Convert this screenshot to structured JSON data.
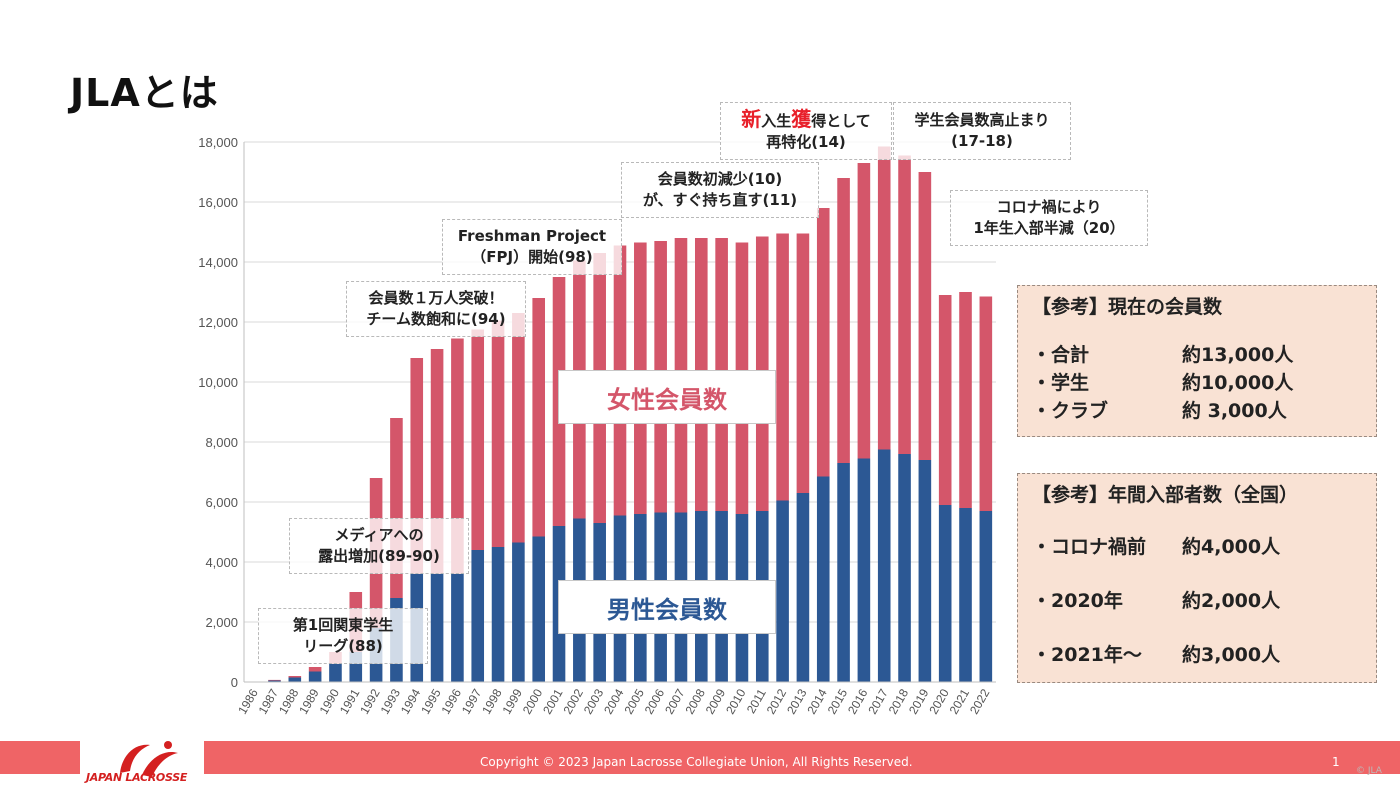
{
  "slide": {
    "title": "JLAとは",
    "copyright": "Copyright © 2023  Japan Lacrosse Collegiate Union, All Rights Reserved.",
    "page_number": "1",
    "logo_text": "JAPAN LACROSSE",
    "watermark": "© JLA"
  },
  "colors": {
    "female": "#d4566a",
    "male": "#2c5894",
    "footer": "#ef6466",
    "info_bg": "#f9e2d4"
  },
  "chart_data": {
    "type": "bar",
    "stacked": true,
    "categories": [
      "1986",
      "1987",
      "1988",
      "1989",
      "1990",
      "1991",
      "1992",
      "1993",
      "1994",
      "1995",
      "1996",
      "1997",
      "1998",
      "1999",
      "2000",
      "2001",
      "2002",
      "2003",
      "2004",
      "2005",
      "2006",
      "2007",
      "2008",
      "2009",
      "2010",
      "2011",
      "2012",
      "2013",
      "2014",
      "2015",
      "2016",
      "2017",
      "2018",
      "2019",
      "2020",
      "2021",
      "2022"
    ],
    "series": [
      {
        "name": "男性会員数",
        "values": [
          0,
          50,
          150,
          350,
          600,
          1000,
          1800,
          2800,
          3600,
          3600,
          3600,
          4400,
          4500,
          4650,
          4850,
          5200,
          5450,
          5300,
          5550,
          5600,
          5650,
          5650,
          5700,
          5700,
          5600,
          5700,
          6050,
          6300,
          6850,
          7300,
          7450,
          7750,
          7600,
          7400,
          5900,
          5800,
          5700
        ]
      },
      {
        "name": "女性会員数",
        "values": [
          0,
          20,
          50,
          150,
          400,
          2000,
          5000,
          6000,
          7200,
          7500,
          7850,
          7350,
          7550,
          7650,
          7950,
          8300,
          8600,
          9000,
          9000,
          9050,
          9050,
          9150,
          9100,
          9100,
          9050,
          9150,
          8900,
          8650,
          8950,
          9500,
          9850,
          10100,
          9950,
          9600,
          7000,
          7200,
          7150
        ]
      }
    ],
    "ylim": [
      0,
      18000
    ],
    "yticks": [
      0,
      2000,
      4000,
      6000,
      8000,
      10000,
      12000,
      14000,
      16000,
      18000
    ],
    "ytick_labels": [
      "0",
      "2,000",
      "4,000",
      "6,000",
      "8,000",
      "10,000",
      "12,000",
      "14,000",
      "16,000",
      "18,000"
    ],
    "grid": true,
    "annotations": [
      {
        "lines": [
          "第1回関東学生",
          "リーグ(88)"
        ]
      },
      {
        "lines": [
          "メディアへの",
          "露出増加(89-90)"
        ]
      },
      {
        "lines": [
          "会員数１万人突破！",
          "チーム数飽和に(94)"
        ]
      },
      {
        "lines": [
          "Freshman Project",
          "（FPJ）開始(98)"
        ]
      },
      {
        "lines": [
          "会員数初減少(10)",
          "が、すぐ持ち直す(11)"
        ]
      },
      {
        "prefix_red": "新",
        "mid": "入生",
        "mid_red": "獲",
        "suffix": "得として",
        "line2": "再特化(14)"
      },
      {
        "lines": [
          "学生会員数高止まり",
          "(17-18)"
        ]
      },
      {
        "lines": [
          "コロナ禍により",
          "1年生入部半減（20）"
        ]
      }
    ]
  },
  "info_boxes": [
    {
      "heading": "【参考】現在の会員数",
      "rows": [
        {
          "label": "・合計",
          "value": "約13,000人"
        },
        {
          "label": "・学生",
          "value": "約10,000人"
        },
        {
          "label": "・クラブ",
          "value": "約 3,000人"
        }
      ]
    },
    {
      "heading": "【参考】年間入部者数（全国）",
      "rows": [
        {
          "label": "・コロナ禍前",
          "value": "約4,000人"
        },
        {
          "label": "・2020年",
          "value": "約2,000人"
        },
        {
          "label": "・2021年～",
          "value": "約3,000人"
        }
      ]
    }
  ]
}
